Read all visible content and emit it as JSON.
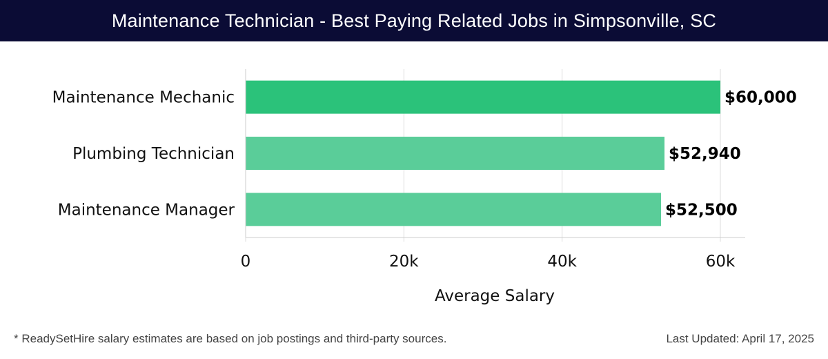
{
  "header": {
    "title": "Maintenance Technician - Best Paying Related Jobs in Simpsonville, SC"
  },
  "chart_data": {
    "type": "bar",
    "orientation": "horizontal",
    "title": "Maintenance Technician - Best Paying Related Jobs in Simpsonville, SC",
    "categories": [
      "Maintenance Mechanic",
      "Plumbing Technician",
      "Maintenance Manager"
    ],
    "values": [
      60000,
      52940,
      52500
    ],
    "value_labels": [
      "$60,000",
      "$52,940",
      "$52,500"
    ],
    "xlabel": "Average Salary",
    "ylabel": "",
    "xlim": [
      0,
      63000
    ],
    "xticks": [
      0,
      20000,
      40000,
      60000
    ],
    "xtick_labels": [
      "0",
      "20k",
      "40k",
      "60k"
    ],
    "grid": "vertical",
    "colors": {
      "highlight": "#2bc27a",
      "bar": "#5acd99",
      "grid": "#dddddd",
      "axis": "#cccccc"
    }
  },
  "footer": {
    "note": "* ReadySetHire salary estimates are based on job postings and third-party sources.",
    "updated": "Last Updated: April 17, 2025"
  }
}
